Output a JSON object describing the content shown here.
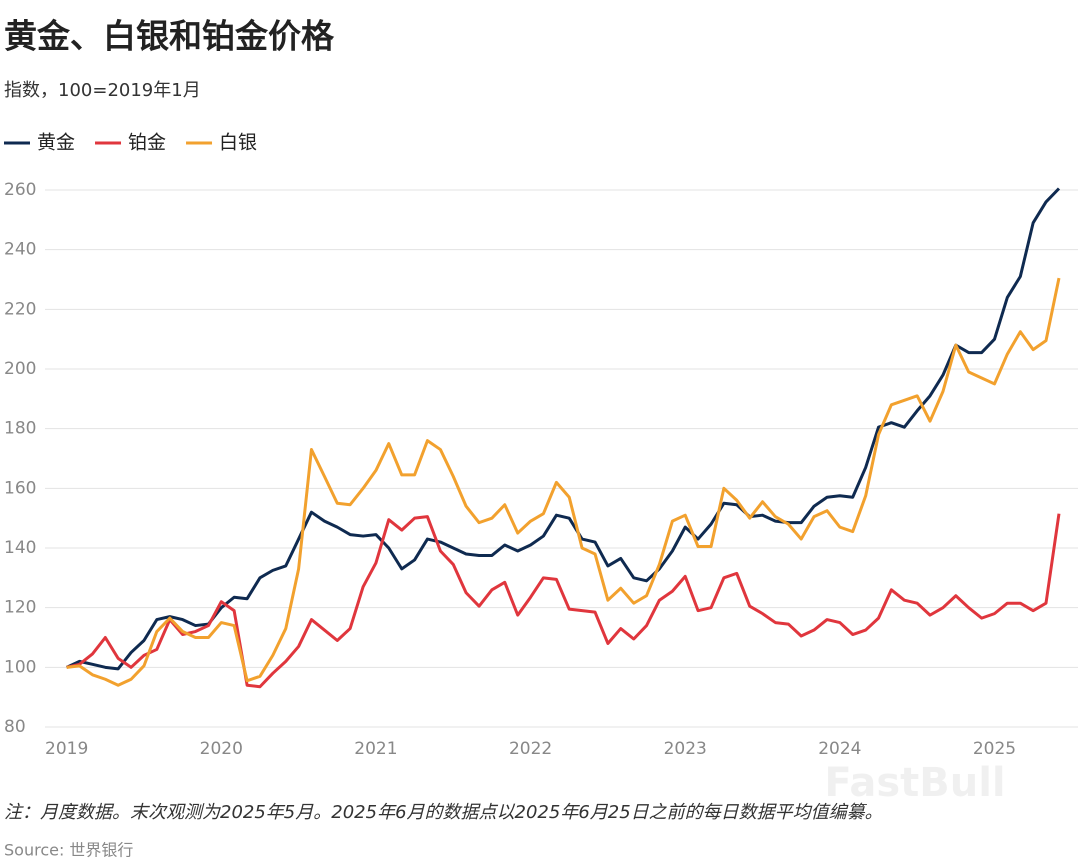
{
  "chart_data": {
    "type": "line",
    "title": "黄金、白银和铂金价格",
    "subtitle": "指数，100=2019年1月",
    "note": "注：月度数据。末次观测为2025年5月。2025年6月的数据点以2025年6月25日之前的每日数据平均值编纂。",
    "source": "Source: 世界银行",
    "watermark": "FastBull",
    "x": [
      2019,
      2019.083,
      2019.167,
      2019.25,
      2019.333,
      2019.417,
      2019.5,
      2019.583,
      2019.667,
      2019.75,
      2019.833,
      2019.917,
      2020,
      2020.083,
      2020.167,
      2020.25,
      2020.333,
      2020.417,
      2020.5,
      2020.583,
      2020.667,
      2020.75,
      2020.833,
      2020.917,
      2021,
      2021.083,
      2021.167,
      2021.25,
      2021.333,
      2021.417,
      2021.5,
      2021.583,
      2021.667,
      2021.75,
      2021.833,
      2021.917,
      2022,
      2022.083,
      2022.167,
      2022.25,
      2022.333,
      2022.417,
      2022.5,
      2022.583,
      2022.667,
      2022.75,
      2022.833,
      2022.917,
      2023,
      2023.083,
      2023.167,
      2023.25,
      2023.333,
      2023.417,
      2023.5,
      2023.583,
      2023.667,
      2023.75,
      2023.833,
      2023.917,
      2024,
      2024.083,
      2024.167,
      2024.25,
      2024.333,
      2024.417,
      2024.5,
      2024.583,
      2024.667,
      2024.75,
      2024.833,
      2024.917,
      2025,
      2025.083,
      2025.167,
      2025.25,
      2025.333,
      2025.417
    ],
    "series": [
      {
        "name": "黄金",
        "color": "#0f2a50",
        "values": [
          100,
          102,
          101,
          100,
          99.5,
          105,
          109,
          116,
          117,
          116,
          114,
          114.5,
          120,
          123.5,
          123,
          130,
          132.5,
          134,
          143,
          152,
          149,
          147,
          144.5,
          144,
          144.5,
          140,
          133,
          136,
          143,
          142,
          140,
          138,
          137.5,
          137.5,
          141,
          139,
          141,
          144,
          151,
          150,
          143,
          142,
          134,
          136.5,
          130,
          129,
          133,
          139,
          147,
          143,
          148,
          155,
          154.5,
          150.5,
          151,
          149,
          148.5,
          148.5,
          154,
          157,
          157.5,
          157,
          167,
          180.5,
          182,
          180.5,
          186,
          191,
          198,
          208,
          205.5,
          205.5,
          210,
          224,
          231,
          249,
          256,
          260.5
        ]
      },
      {
        "name": "铂金",
        "color": "#e0363d",
        "values": [
          100,
          101,
          104.5,
          110,
          103,
          100,
          104,
          106,
          116,
          111,
          112,
          114,
          122,
          119,
          94,
          93.5,
          98,
          102,
          107,
          116,
          112.5,
          109,
          113,
          127,
          135,
          149.5,
          146,
          150,
          150.5,
          139,
          134.5,
          125,
          120.5,
          126,
          128.5,
          117.5,
          123.5,
          130,
          129.5,
          119.5,
          119,
          118.5,
          108,
          113,
          109.5,
          114,
          122.5,
          125.5,
          130.5,
          119,
          120,
          130,
          131.5,
          120.5,
          118,
          115,
          114.5,
          110.5,
          112.5,
          116,
          115,
          111,
          112.5,
          116.5,
          126,
          122.5,
          121.5,
          117.5,
          120,
          124,
          120,
          116.5,
          118,
          121.5,
          121.5,
          119,
          121.5,
          151.5
        ]
      },
      {
        "name": "白银",
        "color": "#f2a12e",
        "values": [
          100,
          100.5,
          97.5,
          96,
          94,
          96,
          100.5,
          112,
          116.5,
          112,
          110,
          110,
          115,
          114,
          95.5,
          97,
          104,
          113,
          133,
          173,
          164,
          155,
          154.5,
          160,
          166,
          175,
          164.5,
          164.5,
          176,
          173,
          164,
          154,
          148.5,
          150,
          154.5,
          145,
          149,
          151.5,
          162,
          157,
          140,
          138,
          122.5,
          126.5,
          121.5,
          124,
          134.5,
          149,
          151,
          140.5,
          140.5,
          160,
          156,
          150,
          155.5,
          150.5,
          148,
          143,
          150.5,
          152.5,
          147,
          145.5,
          157.5,
          178,
          188,
          189.5,
          191,
          182.5,
          192.5,
          208,
          199,
          197,
          195,
          205,
          212.5,
          206.5,
          209.5,
          230.5
        ]
      }
    ],
    "xlim": [
      2018.86,
      2025.54
    ],
    "xticks": [
      2019,
      2020,
      2021,
      2022,
      2023,
      2024,
      2025
    ],
    "ylim": [
      80,
      260
    ],
    "yticks": [
      80,
      100,
      120,
      140,
      160,
      180,
      200,
      220,
      240,
      260
    ],
    "grid": true
  }
}
